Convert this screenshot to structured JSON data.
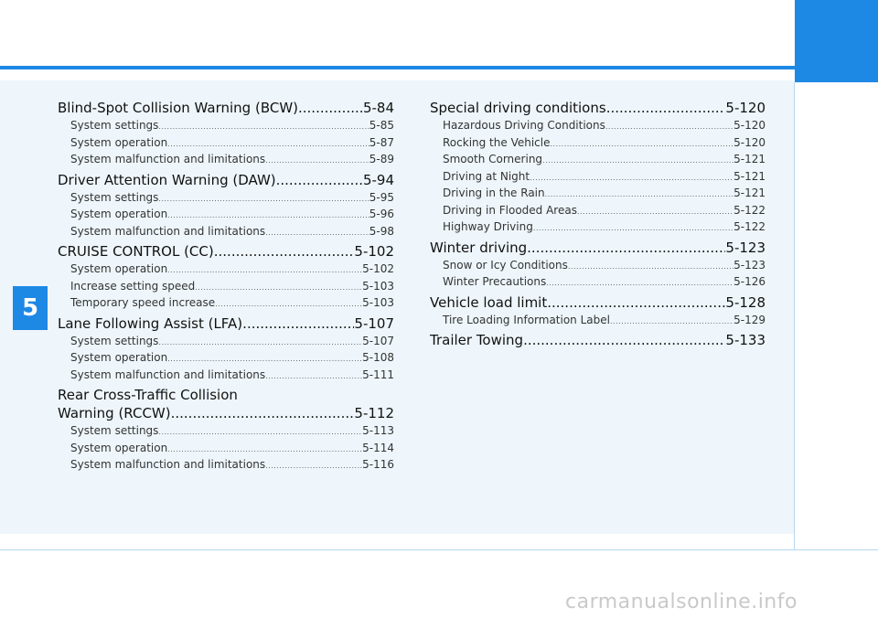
{
  "chapter": "5",
  "left_column": [
    {
      "title": "Blind-Spot Collision Warning (BCW)",
      "page": "5-84",
      "items": [
        {
          "label": "System settings",
          "page": "5-85"
        },
        {
          "label": "System operation",
          "page": "5-87"
        },
        {
          "label": "System malfunction and limitations",
          "page": "5-89"
        }
      ]
    },
    {
      "title": "Driver Attention Warning (DAW)",
      "page": "5-94",
      "items": [
        {
          "label": "System settings",
          "page": "5-95"
        },
        {
          "label": "System operation",
          "page": "5-96"
        },
        {
          "label": "System malfunction and limitations",
          "page": "5-98"
        }
      ]
    },
    {
      "title": "CRUISE CONTROL (CC)",
      "page": "5-102",
      "items": [
        {
          "label": "System operation",
          "page": "5-102"
        },
        {
          "label": "Increase setting speed",
          "page": "5-103"
        },
        {
          "label": "Temporary speed increase",
          "page": "5-103"
        }
      ]
    },
    {
      "title": "Lane Following Assist (LFA)",
      "page": "5-107",
      "items": [
        {
          "label": "System settings",
          "page": "5-107"
        },
        {
          "label": "System operation",
          "page": "5-108"
        },
        {
          "label": "System malfunction and limitations",
          "page": "5-111"
        }
      ]
    },
    {
      "title_line1": "Rear Cross-Traffic Collision",
      "title": "Warning (RCCW)",
      "page": "5-112",
      "items": [
        {
          "label": "System settings",
          "page": "5-113"
        },
        {
          "label": "System operation",
          "page": "5-114"
        },
        {
          "label": "System malfunction and limitations",
          "page": "5-116"
        }
      ]
    }
  ],
  "right_column": [
    {
      "title": "Special driving conditions",
      "page": "5-120",
      "items": [
        {
          "label": "Hazardous Driving Conditions",
          "page": "5-120"
        },
        {
          "label": "Rocking the Vehicle",
          "page": "5-120"
        },
        {
          "label": "Smooth Cornering",
          "page": "5-121"
        },
        {
          "label": "Driving at Night",
          "page": "5-121"
        },
        {
          "label": "Driving in the Rain",
          "page": "5-121"
        },
        {
          "label": "Driving in Flooded Areas",
          "page": "5-122"
        },
        {
          "label": "Highway Driving",
          "page": "5-122"
        }
      ]
    },
    {
      "title": "Winter driving",
      "page": "5-123",
      "items": [
        {
          "label": "Snow or Icy Conditions",
          "page": "5-123"
        },
        {
          "label": "Winter Precautions",
          "page": "5-126"
        }
      ]
    },
    {
      "title": "Vehicle load limit",
      "page": "5-128",
      "items": [
        {
          "label": "Tire Loading Information Label",
          "page": "5-129"
        }
      ]
    },
    {
      "title": "Trailer Towing",
      "page": "5-133",
      "items": []
    }
  ],
  "watermark": "carmanualsonline.info",
  "colors": {
    "accent": "#1e88e5",
    "panel": "#eef6fb",
    "rule": "#b7d8f0"
  }
}
